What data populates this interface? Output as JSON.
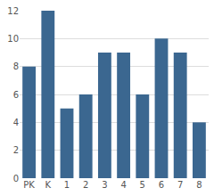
{
  "chart_data": {
    "type": "bar",
    "categories": [
      "PK",
      "K",
      "1",
      "2",
      "3",
      "4",
      "5",
      "6",
      "7",
      "8"
    ],
    "values": [
      8,
      12,
      5,
      6,
      9,
      9,
      6,
      10,
      9,
      4
    ],
    "color": "#3b6790",
    "ylim": [
      0,
      12
    ],
    "yticks": [
      0,
      2,
      4,
      6,
      8,
      10,
      12
    ],
    "grid": true
  }
}
